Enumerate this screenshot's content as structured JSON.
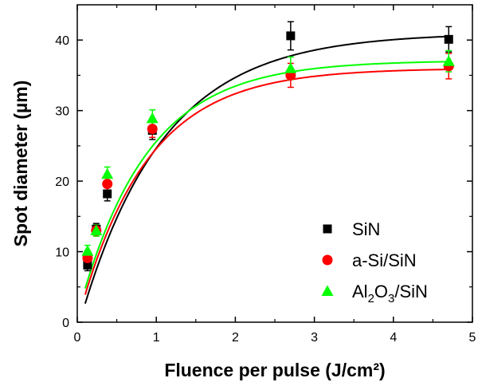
{
  "chart_data": {
    "type": "scatter",
    "title": "",
    "xlabel": "Fluence per pulse (J/cm²)",
    "ylabel": "Spot diameter (µm)",
    "xlim": [
      0,
      5
    ],
    "ylim": [
      0,
      45
    ],
    "xticks": [
      "0",
      "1",
      "2",
      "3",
      "4",
      "5"
    ],
    "yticks": [
      "0",
      "10",
      "20",
      "30",
      "40"
    ],
    "grid": false,
    "legend_position": "bottom-right",
    "series": [
      {
        "name": "SiN",
        "marker": "square",
        "color": "#000000",
        "x": [
          0.13,
          0.24,
          0.38,
          0.95,
          2.7,
          4.7
        ],
        "y": [
          8.1,
          13.2,
          18.2,
          27.2,
          40.6,
          40.1
        ],
        "err": [
          0.8,
          0.8,
          1.0,
          1.3,
          2.0,
          1.8
        ],
        "fit": {
          "a": 41.0,
          "k": 0.95,
          "x0": 0.03
        }
      },
      {
        "name": "a-Si/SiN",
        "marker": "circle",
        "color": "#ff0000",
        "x": [
          0.13,
          0.24,
          0.38,
          0.95,
          2.7,
          4.7
        ],
        "y": [
          9.1,
          13.0,
          19.6,
          27.4,
          35.0,
          36.3
        ],
        "err": [
          0.8,
          0.8,
          1.0,
          1.2,
          1.7,
          1.8
        ],
        "fit": {
          "a": 36.0,
          "k": 1.15,
          "x0": 0.0
        }
      },
      {
        "name": "Al2O3/SiN",
        "label_parts": [
          "Al",
          "2",
          "O",
          "3",
          "/SiN"
        ],
        "marker": "triangle",
        "color": "#00ff00",
        "x": [
          0.13,
          0.24,
          0.38,
          0.95,
          2.7,
          4.7
        ],
        "y": [
          10.1,
          13.0,
          21.0,
          28.9,
          36.0,
          37.0
        ],
        "err": [
          0.8,
          0.8,
          1.0,
          1.2,
          1.6,
          1.5
        ],
        "fit": {
          "a": 37.1,
          "k": 1.15,
          "x0": -0.02
        }
      }
    ]
  }
}
